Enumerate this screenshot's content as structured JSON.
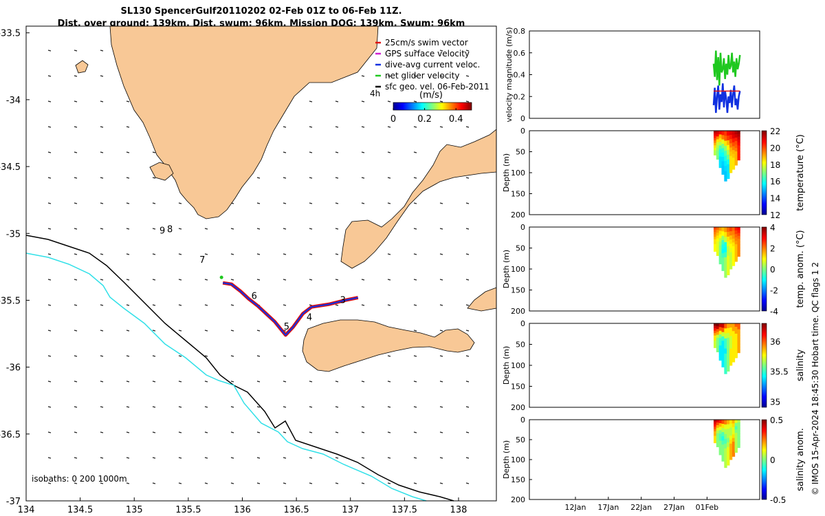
{
  "title_line1": "SL130 SpencerGulf20110202 02-Feb 01Z to 06-Feb 11Z.",
  "title_line2": "Dist. over ground: 139km. Dist. swum: 96km. Mission DOG: 139km. Swum: 96km",
  "credit": "© IMOS 15-Apr-2024 18:45:30 Hobart time. QC flags 1  2",
  "colors": {
    "land": "#f8c896",
    "track_red": "#e01010",
    "track_blue": "#1030e0",
    "isobath_200": "#000000",
    "isobath_1000": "#30e0e8"
  },
  "chart_data": [
    {
      "id": "map",
      "type": "map",
      "xlim": [
        134,
        138.35
      ],
      "ylim": [
        -37,
        -33.45
      ],
      "xticks": [
        134,
        134.5,
        135,
        135.5,
        136,
        136.5,
        137,
        137.5,
        138
      ],
      "xtick_labels": [
        "134",
        "134.5",
        "135",
        "135.5",
        "136",
        "136.5",
        "137",
        "137.5",
        "138"
      ],
      "yticks": [
        -33.5,
        -34,
        -34.5,
        -35,
        -35.5,
        -36,
        -36.5,
        -37
      ],
      "ytick_labels": [
        "-33.5",
        "-34",
        "-34.5",
        "-35",
        "-35.5",
        "-36",
        "-36.5",
        "-37"
      ],
      "isobath_label": "isobaths: 0   200  1000m",
      "legend": [
        {
          "label": "25cm/s swim vector",
          "color": "#e01010"
        },
        {
          "label": "GPS surface velocity",
          "color": "#d020d0"
        },
        {
          "label": "dive-avg current veloc.",
          "color": "#1030e0"
        },
        {
          "label": "net glider velocity",
          "color": "#20c820"
        },
        {
          "label": "sfc geo. vel. 06-Feb-2011",
          "color": "#000000"
        }
      ],
      "colorbar": {
        "label": "(m/s)",
        "ticks": [
          0,
          0.2,
          0.4
        ],
        "tick_labels": [
          "0",
          "0.2",
          "0.4"
        ],
        "range": [
          0,
          0.5
        ],
        "arrow_label": "4h"
      },
      "track": [
        [
          135.82,
          -35.37
        ],
        [
          135.9,
          -35.38
        ],
        [
          135.98,
          -35.43
        ],
        [
          136.06,
          -35.49
        ],
        [
          136.14,
          -35.54
        ],
        [
          136.22,
          -35.6
        ],
        [
          136.3,
          -35.66
        ],
        [
          136.36,
          -35.72
        ],
        [
          136.4,
          -35.76
        ],
        [
          136.47,
          -35.7
        ],
        [
          136.56,
          -35.6
        ],
        [
          136.64,
          -35.55
        ],
        [
          136.8,
          -35.53
        ],
        [
          136.95,
          -35.5
        ],
        [
          137.07,
          -35.48
        ]
      ],
      "day_labels": [
        {
          "text": "9",
          "lon": 135.26,
          "lat": -35.0
        },
        {
          "text": "8",
          "lon": 135.33,
          "lat": -34.99
        },
        {
          "text": "7",
          "lon": 135.63,
          "lat": -35.22
        },
        {
          "text": "6",
          "lon": 136.11,
          "lat": -35.49
        },
        {
          "text": "5",
          "lon": 136.41,
          "lat": -35.72
        },
        {
          "text": "4",
          "lon": 136.62,
          "lat": -35.65
        },
        {
          "text": "3",
          "lon": 136.93,
          "lat": -35.52
        }
      ]
    },
    {
      "id": "velocity",
      "type": "line",
      "ylabel": "velocity magnitude (m/s)",
      "ylim": [
        0,
        0.8
      ],
      "yticks": [
        0,
        0.2,
        0.4,
        0.6,
        0.8
      ],
      "ytick_labels": [
        "0",
        "0.2",
        "0.4",
        "0.6",
        "0.8"
      ],
      "series": [
        {
          "name": "net glider velocity",
          "color": "#20c820",
          "values": [
            0.5,
            0.38,
            0.62,
            0.35,
            0.56,
            0.3,
            0.6,
            0.42,
            0.45,
            0.55,
            0.36,
            0.5,
            0.4,
            0.58,
            0.45,
            0.48,
            0.6,
            0.42,
            0.52,
            0.38,
            0.55,
            0.45,
            0.5,
            0.58
          ]
        },
        {
          "name": "dive-avg current veloc.",
          "color": "#1030e0",
          "values": [
            0.12,
            0.28,
            0.05,
            0.2,
            0.3,
            0.08,
            0.22,
            0.15,
            0.32,
            0.1,
            0.25,
            0.18,
            0.05,
            0.2,
            0.14,
            0.26,
            0.1,
            0.22,
            0.3,
            0.12,
            0.18,
            0.08,
            0.2,
            0.25
          ]
        },
        {
          "name": "25cm/s swim vector",
          "color": "#e01010",
          "values": [
            0.25,
            0.25,
            0.25,
            0.25,
            0.25,
            0.25,
            0.25,
            0.25
          ]
        }
      ]
    },
    {
      "id": "temperature",
      "type": "heatmap",
      "ylabel": "Depth (m)",
      "clabel": "temperature (°C)",
      "ylim": [
        0,
        200
      ],
      "yticks": [
        0,
        50,
        100,
        150,
        200
      ],
      "ytick_labels": [
        "0",
        "50",
        "100",
        "150",
        "200"
      ],
      "crange": [
        12,
        22
      ],
      "cticks": [
        12,
        14,
        16,
        18,
        20,
        22
      ],
      "ctick_labels": [
        "12",
        "14",
        "16",
        "18",
        "20",
        "22"
      ],
      "depth_max": [
        58,
        68,
        88,
        104,
        120,
        114,
        100,
        92,
        82,
        70
      ],
      "values": [
        [
          21.5,
          21,
          20.5,
          20,
          19.5,
          19,
          18.5,
          18,
          17.5,
          17.5
        ],
        [
          21.2,
          20.8,
          19.5,
          18.5,
          17.8,
          17.5,
          17.2,
          17,
          17,
          17
        ],
        [
          20.8,
          19,
          18.5,
          17.5,
          16.5,
          16,
          15.8,
          15.5,
          15.5,
          15.5
        ],
        [
          20.5,
          19.5,
          18,
          17,
          16.2,
          15.8,
          15.5,
          15.3,
          15.2,
          15.2
        ],
        [
          20.2,
          19.8,
          18.5,
          17.2,
          16.5,
          16,
          15.6,
          15.4,
          15.2,
          15.2
        ],
        [
          20.8,
          20.2,
          19,
          18.2,
          17.5,
          16.8,
          16,
          15.5,
          15.5,
          15.5
        ],
        [
          21,
          20.5,
          20,
          19.5,
          19,
          18.8,
          18.5,
          18.5,
          18.5,
          18.5
        ],
        [
          21.2,
          21,
          20.5,
          20,
          19.5,
          19,
          18.8,
          18.5,
          18.5,
          18.5
        ],
        [
          21.5,
          21.2,
          20.5,
          20,
          19.8,
          19.5,
          19,
          19,
          19,
          19
        ],
        [
          21.8,
          21.5,
          21.2,
          21,
          20.8,
          20.5,
          20.5,
          20.5,
          20.5,
          20.5
        ]
      ]
    },
    {
      "id": "temp_anom",
      "type": "heatmap",
      "ylabel": "Depth (m)",
      "clabel": "temp. anom. (°C)",
      "ylim": [
        0,
        200
      ],
      "yticks": [
        0,
        50,
        100,
        150,
        200
      ],
      "ytick_labels": [
        "0",
        "50",
        "100",
        "150",
        "200"
      ],
      "crange": [
        -4,
        4
      ],
      "cticks": [
        -4,
        -2,
        0,
        2,
        4
      ],
      "ctick_labels": [
        "-4",
        "-2",
        "0",
        "2",
        "4"
      ],
      "depth_max": [
        58,
        68,
        88,
        104,
        120,
        114,
        100,
        92,
        82,
        70
      ],
      "values": [
        [
          2.5,
          2.2,
          2,
          1.8,
          1.5,
          1.2,
          1.2,
          1,
          1,
          1
        ],
        [
          2.2,
          1.8,
          1.5,
          1.2,
          1,
          0.8,
          0.8,
          0.8,
          0.8,
          0.8
        ],
        [
          1.8,
          1.2,
          1,
          0.5,
          0.2,
          0,
          0,
          -0.2,
          -0.2,
          -0.2
        ],
        [
          1.5,
          1,
          0.2,
          -0.5,
          -0.8,
          -1,
          -0.5,
          -0.2,
          -0.2,
          -0.2
        ],
        [
          1.8,
          1.2,
          0.5,
          -0.8,
          -1,
          -0.5,
          0.2,
          0.2,
          0.2,
          0.2
        ],
        [
          2.2,
          1.8,
          1.2,
          0.8,
          0.5,
          0.5,
          0.8,
          0.8,
          0.8,
          0.8
        ],
        [
          2.5,
          2,
          1.5,
          1.2,
          1,
          0.8,
          0.5,
          0.5,
          0.5,
          0.5
        ],
        [
          2.2,
          2,
          1.8,
          1.5,
          1.2,
          1,
          1,
          1,
          1,
          1
        ],
        [
          2.8,
          2.5,
          2.2,
          2,
          1.8,
          1.5,
          1.5,
          1.5,
          1.5,
          1.5
        ],
        [
          3,
          2.8,
          2.5,
          2.2,
          2,
          2,
          2,
          2,
          2,
          2
        ]
      ]
    },
    {
      "id": "salinity",
      "type": "heatmap",
      "ylabel": "Depth (m)",
      "clabel": "salinity",
      "ylim": [
        0,
        200
      ],
      "yticks": [
        0,
        50,
        100,
        150,
        200
      ],
      "ytick_labels": [
        "0",
        "50",
        "100",
        "150",
        "200"
      ],
      "crange": [
        34.9,
        36.3
      ],
      "cticks": [
        35,
        35.5,
        36
      ],
      "ctick_labels": [
        "35",
        "35.5",
        "36"
      ],
      "depth_max": [
        58,
        68,
        88,
        104,
        120,
        114,
        100,
        92,
        82,
        70
      ],
      "values": [
        [
          36.3,
          36.2,
          36.1,
          36,
          35.9,
          35.8,
          35.8,
          35.7,
          35.7,
          35.7
        ],
        [
          36.3,
          36.2,
          36,
          35.9,
          35.7,
          35.6,
          35.6,
          35.6,
          35.6,
          35.6
        ],
        [
          36.2,
          36,
          35.8,
          35.6,
          35.5,
          35.5,
          35.4,
          35.4,
          35.4,
          35.4
        ],
        [
          36.2,
          36,
          35.7,
          35.5,
          35.4,
          35.4,
          35.4,
          35.4,
          35.4,
          35.4
        ],
        [
          36,
          35.8,
          35.7,
          35.5,
          35.5,
          35.4,
          35.5,
          35.5,
          35.5,
          35.5
        ],
        [
          35.9,
          35.8,
          35.7,
          35.6,
          35.6,
          35.6,
          35.6,
          35.6,
          35.6,
          35.6
        ],
        [
          35.9,
          35.8,
          35.8,
          35.7,
          35.7,
          35.7,
          35.8,
          35.8,
          35.8,
          35.8
        ],
        [
          35.9,
          35.9,
          35.8,
          35.8,
          35.8,
          35.8,
          35.8,
          35.8,
          35.8,
          35.8
        ],
        [
          36,
          35.9,
          35.9,
          35.8,
          35.8,
          35.8,
          35.8,
          35.8,
          35.8,
          35.8
        ],
        [
          36,
          36,
          35.9,
          35.9,
          35.9,
          35.9,
          35.9,
          35.9,
          35.9,
          35.9
        ]
      ]
    },
    {
      "id": "sal_anom",
      "type": "heatmap",
      "ylabel": "Depth (m)",
      "clabel": "salinity anom.",
      "ylim": [
        0,
        200
      ],
      "yticks": [
        0,
        50,
        100,
        150,
        200
      ],
      "ytick_labels": [
        "0",
        "50",
        "100",
        "150",
        "200"
      ],
      "crange": [
        -0.5,
        0.5
      ],
      "cticks": [
        -0.5,
        0,
        0.5
      ],
      "ctick_labels": [
        "-0.5",
        "0",
        "0.5"
      ],
      "depth_max": [
        58,
        68,
        88,
        104,
        120,
        114,
        100,
        92,
        82,
        70
      ],
      "values": [
        [
          0.45,
          0.4,
          0.35,
          0.3,
          0.25,
          0.2,
          0.2,
          0.15,
          0.15,
          0.15
        ],
        [
          0.4,
          0.3,
          0.2,
          0.1,
          0.05,
          0,
          0,
          0,
          0,
          0
        ],
        [
          0.35,
          0.2,
          0.1,
          0,
          -0.05,
          -0.05,
          0,
          0,
          0,
          0
        ],
        [
          0.3,
          0.15,
          0.05,
          -0.05,
          -0.1,
          -0.05,
          0,
          0,
          0,
          0
        ],
        [
          0.25,
          0.1,
          0.05,
          0,
          -0.05,
          0,
          0.05,
          0.05,
          0.05,
          0.05
        ],
        [
          0.2,
          0.1,
          0.05,
          0.05,
          0,
          0.05,
          0.1,
          0.1,
          0.1,
          0.1
        ],
        [
          0.15,
          0.1,
          0.05,
          0.05,
          0.1,
          0.15,
          0.2,
          0.2,
          0.2,
          0.2
        ],
        [
          0.2,
          0.15,
          0.1,
          0.1,
          0.15,
          0.2,
          0.25,
          0.25,
          0.25,
          0.25
        ],
        [
          0.1,
          0,
          -0.05,
          0,
          0.05,
          0.05,
          0.05,
          0.05,
          0.05,
          0.05
        ],
        [
          0.05,
          0,
          0,
          0,
          0,
          0,
          0,
          0,
          0,
          0
        ]
      ]
    }
  ],
  "time_axis": {
    "ticks": [
      "12Jan",
      "17Jan",
      "22Jan",
      "27Jan",
      "01Feb"
    ],
    "range_days": [
      0,
      35
    ],
    "tick_days": [
      7,
      12,
      17,
      22,
      27
    ],
    "data_start_day": 28,
    "data_end_day": 32
  }
}
